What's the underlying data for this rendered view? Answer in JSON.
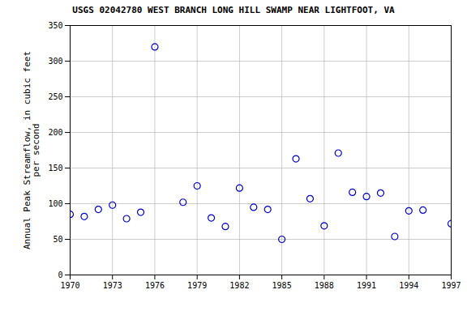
{
  "chart_data": {
    "type": "scatter",
    "title": "USGS 02042780 WEST BRANCH LONG HILL SWAMP NEAR LIGHTFOOT, VA",
    "ylabel": "Annual Peak Streamflow, in cubic feet\nper second",
    "x": [
      1970,
      1971,
      1972,
      1973,
      1974,
      1975,
      1976,
      1978,
      1979,
      1980,
      1981,
      1982,
      1983,
      1984,
      1985,
      1986,
      1987,
      1988,
      1989,
      1990,
      1991,
      1992,
      1993,
      1994,
      1995,
      1997
    ],
    "values": [
      85,
      82,
      92,
      98,
      79,
      88,
      320,
      102,
      125,
      80,
      68,
      122,
      95,
      92,
      50,
      163,
      107,
      69,
      171,
      116,
      110,
      115,
      54,
      90,
      91,
      72
    ],
    "color": "#0000CC",
    "marker": "circle",
    "xlim": [
      1970,
      1997
    ],
    "ylim": [
      0,
      350
    ],
    "xticks": [
      1970,
      1973,
      1976,
      1979,
      1982,
      1985,
      1988,
      1991,
      1994,
      1997
    ],
    "yticks": [
      0,
      50,
      100,
      150,
      200,
      250,
      300,
      350
    ],
    "grid": true
  }
}
